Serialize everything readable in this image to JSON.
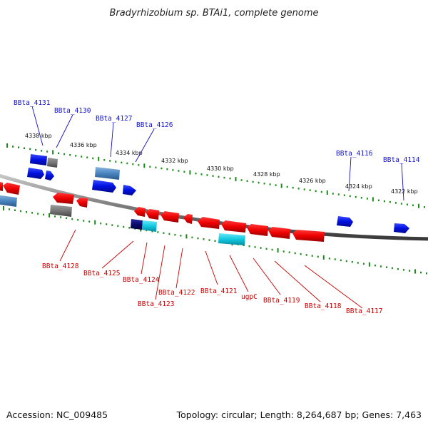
{
  "title": "Bradyrhizobium sp. BTAi1, complete genome",
  "footer": {
    "accession": "Accession: NC_009485",
    "topology": "Topology: circular; Length: 8,264,687 bp; Genes: 7,463"
  },
  "colors": {
    "forward_label": "#1010cc",
    "reverse_label": "#cc0000",
    "tick_marks": "#1a8a1a",
    "backbone": "#8a8a8a"
  },
  "kbp_labels": [
    "4338 kbp",
    "4336 kbp",
    "4334 kbp",
    "4332 kbp",
    "4330 kbp",
    "4328 kbp",
    "4326 kbp",
    "4324 kbp",
    "4322 kbp"
  ],
  "forward_gene_labels": [
    "BBta_4131",
    "BBta_4130",
    "BBta_4127",
    "BBta_4126",
    "BBta_4116",
    "BBta_4114"
  ],
  "reverse_gene_labels": [
    "BBta_4128",
    "BBta_4125",
    "BBta_4124",
    "BBta_4123",
    "BBta_4122",
    "BBta_4121",
    "ugpC",
    "BBta_4119",
    "BBta_4118",
    "BBta_4117"
  ]
}
